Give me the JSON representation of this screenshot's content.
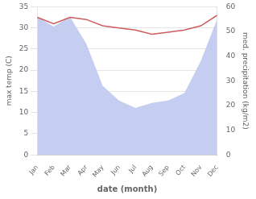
{
  "chart_data": {
    "type": "line",
    "xlabel": "date (month)",
    "ylabel": "max temp (C)",
    "y2label": "med. precipitation (kg/m2)",
    "categories": [
      "Jan",
      "Feb",
      "Mar",
      "Apr",
      "May",
      "Jun",
      "Jul",
      "Aug",
      "Sep",
      "Oct",
      "Nov",
      "Dec"
    ],
    "series": [
      {
        "type": "area",
        "axis": "y2",
        "color": "#c5cdf0",
        "values": [
          56,
          52,
          56,
          45,
          28,
          22,
          19,
          21,
          22,
          25,
          38,
          55
        ]
      },
      {
        "type": "line",
        "color": "#cd5c5c",
        "values": [
          32.5,
          31.0,
          32.5,
          32.0,
          30.5,
          30.0,
          29.5,
          28.5,
          29.0,
          29.5,
          30.5,
          33.0
        ]
      }
    ],
    "ylim": [
      0,
      35
    ],
    "yticks": [
      0,
      5,
      10,
      15,
      20,
      25,
      30,
      35
    ],
    "y2lim": [
      0,
      60
    ],
    "y2ticks": [
      0,
      10,
      20,
      30,
      40,
      50,
      60
    ],
    "grid": true
  }
}
